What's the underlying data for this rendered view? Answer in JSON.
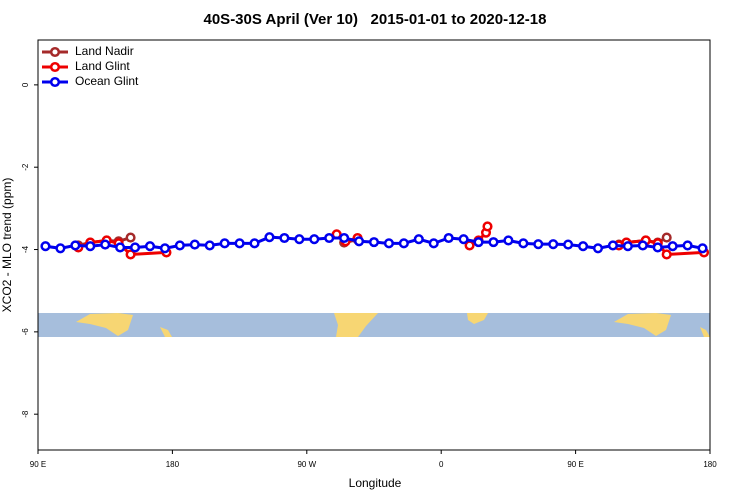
{
  "chart_data": {
    "type": "line",
    "title": "40S-30S April (Ver 10)   2015-01-01 to 2020-12-18",
    "x_label": "Longitude",
    "y_label": "XCO2 - MLO trend (ppm)",
    "xlim": [
      90,
      540
    ],
    "ylim": [
      -8.87,
      1.09
    ],
    "xticks": [
      {
        "value": 90,
        "label": "90 E"
      },
      180,
      {
        "value": 270,
        "label": "90 W"
      },
      {
        "value": 360,
        "label": "0"
      },
      {
        "value": 450,
        "label": "90 E"
      },
      {
        "value": 540,
        "label": "180"
      }
    ],
    "yticks": [
      0,
      -2,
      -4,
      -6,
      -8
    ],
    "legend": "top-left",
    "series": [
      {
        "name": "Land Nadir",
        "color": "#a52a2a",
        "x": [
          117,
          125,
          136,
          144,
          152,
          200,
          295,
          304,
          420,
          479,
          484,
          497,
          505,
          511
        ],
        "values": [
          -3.9,
          -3.83,
          -3.78,
          -3.8,
          -3.71,
          null,
          -3.83,
          -3.76,
          null,
          -3.88,
          -3.83,
          -3.78,
          -3.83,
          -3.71
        ]
      },
      {
        "name": "Land Glint",
        "color": "#ee0000",
        "x": [
          117,
          125,
          136,
          144,
          152,
          176,
          230,
          290,
          296,
          304,
          340,
          379,
          385,
          390,
          391,
          430,
          479,
          484,
          497,
          505,
          511,
          536
        ],
        "values": [
          -3.95,
          -3.83,
          -3.78,
          -3.85,
          -4.12,
          -4.07,
          null,
          -3.63,
          -3.8,
          -3.72,
          null,
          -3.9,
          -3.78,
          -3.59,
          -3.44,
          null,
          -3.9,
          -3.83,
          -3.78,
          -3.85,
          -4.12,
          -4.07
        ]
      },
      {
        "name": "Ocean Glint",
        "color": "#0000ee",
        "x": [
          95,
          105,
          115,
          125,
          135,
          145,
          155,
          165,
          175,
          185,
          195,
          205,
          215,
          225,
          235,
          245,
          255,
          265,
          275,
          285,
          295,
          305,
          315,
          325,
          335,
          345,
          355,
          365,
          375,
          385,
          395,
          405,
          415,
          425,
          435,
          445,
          455,
          465,
          475,
          485,
          495,
          505,
          515,
          525,
          535
        ],
        "values": [
          -3.92,
          -3.97,
          -3.9,
          -3.92,
          -3.88,
          -3.95,
          -3.95,
          -3.92,
          -3.97,
          -3.9,
          -3.88,
          -3.9,
          -3.85,
          -3.85,
          -3.85,
          -3.7,
          -3.72,
          -3.75,
          -3.75,
          -3.72,
          -3.72,
          -3.8,
          -3.82,
          -3.85,
          -3.85,
          -3.75,
          -3.85,
          -3.72,
          -3.75,
          -3.82,
          -3.82,
          -3.78,
          -3.85,
          -3.87,
          -3.87,
          -3.88,
          -3.92,
          -3.97,
          -3.9,
          -3.92,
          -3.9,
          -3.95,
          -3.92,
          -3.9,
          -3.97
        ]
      }
    ]
  }
}
